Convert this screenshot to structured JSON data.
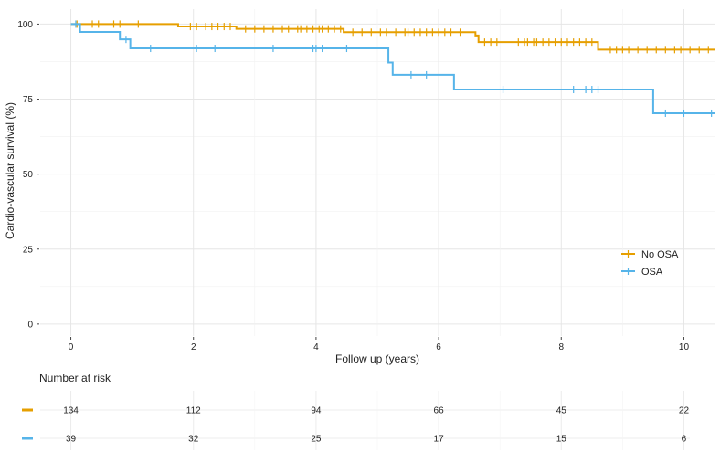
{
  "chart_data": {
    "type": "line",
    "subtype": "kaplan-meier",
    "xlabel": "Follow up (years)",
    "ylabel": "Cardio-vascular survival (%)",
    "xlim": [
      -0.5,
      10.5
    ],
    "ylim": [
      -4,
      105
    ],
    "xticks": [
      0,
      2,
      4,
      6,
      8,
      10
    ],
    "yticks": [
      0,
      25,
      50,
      75,
      100
    ],
    "grid": true,
    "legend_position": "right",
    "series": [
      {
        "name": "No OSA",
        "color": "#E69F00",
        "steps": [
          [
            0,
            100
          ],
          [
            1.75,
            99.2
          ],
          [
            2.7,
            98.4
          ],
          [
            4.45,
            97.3
          ],
          [
            6.6,
            96.2
          ],
          [
            6.65,
            94.0
          ],
          [
            8.6,
            91.5
          ],
          [
            10.5,
            91.5
          ]
        ],
        "censors": [
          [
            0.1,
            100
          ],
          [
            0.35,
            100
          ],
          [
            0.45,
            100
          ],
          [
            0.7,
            100
          ],
          [
            0.8,
            100
          ],
          [
            1.1,
            100
          ],
          [
            1.95,
            99.2
          ],
          [
            2.05,
            99.2
          ],
          [
            2.2,
            99.2
          ],
          [
            2.3,
            99.2
          ],
          [
            2.4,
            99.2
          ],
          [
            2.5,
            99.2
          ],
          [
            2.6,
            99.2
          ],
          [
            2.85,
            98.4
          ],
          [
            3.0,
            98.4
          ],
          [
            3.15,
            98.4
          ],
          [
            3.3,
            98.4
          ],
          [
            3.45,
            98.4
          ],
          [
            3.55,
            98.4
          ],
          [
            3.7,
            98.4
          ],
          [
            3.75,
            98.4
          ],
          [
            3.85,
            98.4
          ],
          [
            3.95,
            98.4
          ],
          [
            4.05,
            98.4
          ],
          [
            4.1,
            98.4
          ],
          [
            4.2,
            98.4
          ],
          [
            4.3,
            98.4
          ],
          [
            4.4,
            98.4
          ],
          [
            4.6,
            97.3
          ],
          [
            4.75,
            97.3
          ],
          [
            4.9,
            97.3
          ],
          [
            5.05,
            97.3
          ],
          [
            5.15,
            97.3
          ],
          [
            5.3,
            97.3
          ],
          [
            5.45,
            97.3
          ],
          [
            5.5,
            97.3
          ],
          [
            5.6,
            97.3
          ],
          [
            5.7,
            97.3
          ],
          [
            5.8,
            97.3
          ],
          [
            5.9,
            97.3
          ],
          [
            6.0,
            97.3
          ],
          [
            6.1,
            97.3
          ],
          [
            6.2,
            97.3
          ],
          [
            6.35,
            97.3
          ],
          [
            6.75,
            94.0
          ],
          [
            6.85,
            94.0
          ],
          [
            6.95,
            94.0
          ],
          [
            7.3,
            94.0
          ],
          [
            7.4,
            94.0
          ],
          [
            7.45,
            94.0
          ],
          [
            7.55,
            94.0
          ],
          [
            7.6,
            94.0
          ],
          [
            7.7,
            94.0
          ],
          [
            7.8,
            94.0
          ],
          [
            7.9,
            94.0
          ],
          [
            8.0,
            94.0
          ],
          [
            8.1,
            94.0
          ],
          [
            8.2,
            94.0
          ],
          [
            8.3,
            94.0
          ],
          [
            8.4,
            94.0
          ],
          [
            8.5,
            94.0
          ],
          [
            8.8,
            91.5
          ],
          [
            8.9,
            91.5
          ],
          [
            9.0,
            91.5
          ],
          [
            9.1,
            91.5
          ],
          [
            9.25,
            91.5
          ],
          [
            9.4,
            91.5
          ],
          [
            9.55,
            91.5
          ],
          [
            9.7,
            91.5
          ],
          [
            9.85,
            91.5
          ],
          [
            9.95,
            91.5
          ],
          [
            10.1,
            91.5
          ],
          [
            10.25,
            91.5
          ],
          [
            10.4,
            91.5
          ]
        ]
      },
      {
        "name": "OSA",
        "color": "#56B4E9",
        "steps": [
          [
            0,
            100
          ],
          [
            0.15,
            97.4
          ],
          [
            0.8,
            94.9
          ],
          [
            0.97,
            91.9
          ],
          [
            5.18,
            87.2
          ],
          [
            5.25,
            83.1
          ],
          [
            6.25,
            78.2
          ],
          [
            9.5,
            70.3
          ],
          [
            10.5,
            70.3
          ]
        ],
        "censors": [
          [
            0.08,
            100
          ],
          [
            0.9,
            94.9
          ],
          [
            1.3,
            91.9
          ],
          [
            2.05,
            91.9
          ],
          [
            2.35,
            91.9
          ],
          [
            3.3,
            91.9
          ],
          [
            3.95,
            91.9
          ],
          [
            4.0,
            91.9
          ],
          [
            4.1,
            91.9
          ],
          [
            4.5,
            91.9
          ],
          [
            5.55,
            83.1
          ],
          [
            5.8,
            83.1
          ],
          [
            7.05,
            78.2
          ],
          [
            8.2,
            78.2
          ],
          [
            8.4,
            78.2
          ],
          [
            8.5,
            78.2
          ],
          [
            8.6,
            78.2
          ],
          [
            9.7,
            70.3
          ],
          [
            10.0,
            70.3
          ],
          [
            10.45,
            70.3
          ]
        ]
      }
    ],
    "risk_table": {
      "title": "Number at risk",
      "times": [
        0,
        2,
        4,
        6,
        8,
        10
      ],
      "rows": [
        {
          "name": "No OSA",
          "color": "#E69F00",
          "values": [
            134,
            112,
            94,
            66,
            45,
            22
          ]
        },
        {
          "name": "OSA",
          "color": "#56B4E9",
          "values": [
            39,
            32,
            25,
            17,
            15,
            6
          ]
        }
      ]
    }
  }
}
